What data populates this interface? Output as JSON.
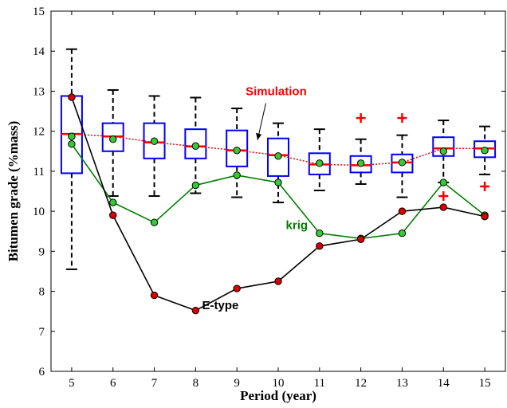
{
  "chart_data": {
    "type": "box",
    "xlabel": "Period (year)",
    "ylabel": "Bitumen grade (%mass)",
    "xlim": [
      4.5,
      15.5
    ],
    "ylim": [
      6,
      15
    ],
    "x_ticks": [
      5,
      6,
      7,
      8,
      9,
      10,
      11,
      12,
      13,
      14,
      15
    ],
    "y_ticks": [
      6,
      7,
      8,
      9,
      10,
      11,
      12,
      13,
      14,
      15
    ],
    "grid": false,
    "boxes": [
      {
        "x": 5,
        "whisker_low": 8.55,
        "q1": 10.95,
        "median": 11.93,
        "q3": 12.88,
        "whisker_high": 14.05,
        "mean": 11.87,
        "outliers": []
      },
      {
        "x": 6,
        "whisker_low": 10.38,
        "q1": 11.5,
        "median": 11.87,
        "q3": 12.2,
        "whisker_high": 13.03,
        "mean": 11.8,
        "outliers": []
      },
      {
        "x": 7,
        "whisker_low": 10.38,
        "q1": 11.32,
        "median": 11.72,
        "q3": 12.2,
        "whisker_high": 12.88,
        "mean": 11.75,
        "outliers": []
      },
      {
        "x": 8,
        "whisker_low": 10.45,
        "q1": 11.32,
        "median": 11.62,
        "q3": 12.05,
        "whisker_high": 12.84,
        "mean": 11.63,
        "outliers": []
      },
      {
        "x": 9,
        "whisker_low": 10.35,
        "q1": 11.12,
        "median": 11.52,
        "q3": 12.02,
        "whisker_high": 12.57,
        "mean": 11.52,
        "outliers": []
      },
      {
        "x": 10,
        "whisker_low": 10.22,
        "q1": 10.88,
        "median": 11.4,
        "q3": 11.82,
        "whisker_high": 12.2,
        "mean": 11.38,
        "outliers": []
      },
      {
        "x": 11,
        "whisker_low": 10.52,
        "q1": 10.92,
        "median": 11.17,
        "q3": 11.45,
        "whisker_high": 12.05,
        "mean": 11.2,
        "outliers": []
      },
      {
        "x": 12,
        "whisker_low": 10.68,
        "q1": 10.97,
        "median": 11.15,
        "q3": 11.38,
        "whisker_high": 11.8,
        "mean": 11.2,
        "outliers": [
          12.33
        ]
      },
      {
        "x": 13,
        "whisker_low": 10.35,
        "q1": 10.97,
        "median": 11.22,
        "q3": 11.42,
        "whisker_high": 11.9,
        "mean": 11.22,
        "outliers": [
          12.33
        ]
      },
      {
        "x": 14,
        "whisker_low": 10.72,
        "q1": 11.38,
        "median": 11.57,
        "q3": 11.85,
        "whisker_high": 12.27,
        "mean": 11.5,
        "outliers": [
          10.38
        ]
      },
      {
        "x": 15,
        "whisker_low": 10.92,
        "q1": 11.35,
        "median": 11.57,
        "q3": 11.75,
        "whisker_high": 12.12,
        "mean": 11.52,
        "outliers": [
          10.62
        ]
      }
    ],
    "series": [
      {
        "name": "Simulation",
        "style": "dotted",
        "color": "#ff0000",
        "x": [
          5,
          6,
          7,
          8,
          9,
          10,
          11,
          12,
          13,
          14,
          15
        ],
        "values": [
          11.93,
          11.87,
          11.72,
          11.62,
          11.52,
          11.4,
          11.17,
          11.15,
          11.22,
          11.57,
          11.57
        ]
      },
      {
        "name": "krig",
        "style": "solid",
        "color": "#008000",
        "marker_fill": "#33cc33",
        "x": [
          5,
          6,
          7,
          8,
          9,
          10,
          11,
          12,
          13,
          14,
          15
        ],
        "values": [
          11.68,
          10.22,
          9.72,
          10.65,
          10.9,
          10.72,
          9.45,
          9.32,
          9.45,
          10.72,
          9.9
        ]
      },
      {
        "name": "E-type",
        "style": "solid",
        "color": "#000000",
        "marker_fill": "#dd0000",
        "x": [
          5,
          6,
          7,
          8,
          9,
          10,
          11,
          12,
          13,
          14,
          15
        ],
        "values": [
          12.85,
          9.9,
          7.9,
          7.52,
          8.07,
          8.25,
          9.13,
          9.3,
          10.0,
          10.1,
          9.87
        ]
      }
    ],
    "annotations": [
      {
        "text": "Simulation",
        "color": "#ff0000",
        "x": 9.95,
        "y": 12.9
      },
      {
        "text": "krig",
        "color": "#008000",
        "x": 10.45,
        "y": 9.55
      },
      {
        "text": "E-type",
        "color": "#000000",
        "x": 8.6,
        "y": 7.55
      }
    ],
    "colors": {
      "box": "#0000ff",
      "whisker": "#000000",
      "median": "#ff0000",
      "mean_marker": "#33cc33",
      "outlier": "#ff0000"
    }
  }
}
